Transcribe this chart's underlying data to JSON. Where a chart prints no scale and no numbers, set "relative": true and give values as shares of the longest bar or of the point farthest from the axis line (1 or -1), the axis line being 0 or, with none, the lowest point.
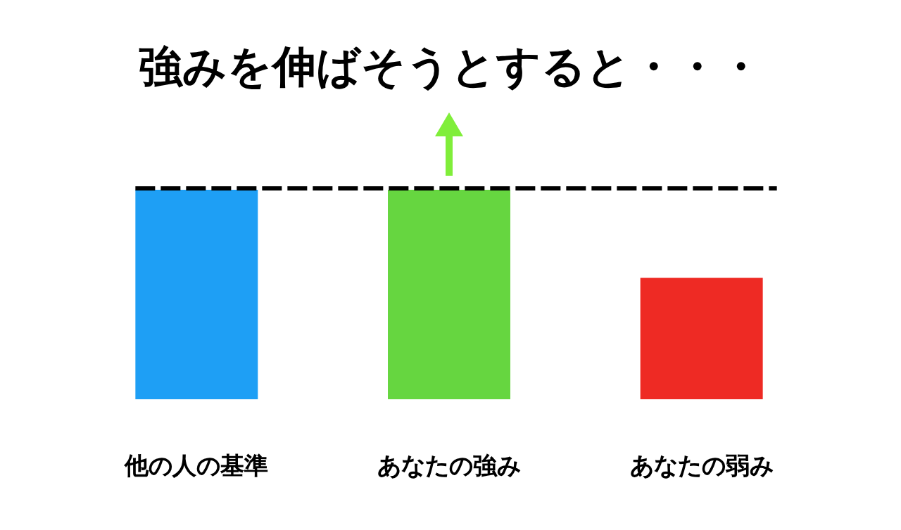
{
  "chart_data": {
    "type": "bar",
    "title": "強みを伸ばそうとすると・・・",
    "relative": true,
    "categories": [
      "他の人の基準",
      "あなたの強み",
      "あなたの弱み"
    ],
    "values": [
      1,
      1,
      0.58
    ],
    "colors": [
      "#1e9ff5",
      "#66d640",
      "#ee2a24"
    ],
    "ref_lines": [
      {
        "axis": "y",
        "value": 1,
        "color": "#000000",
        "line_style": "dashed"
      }
    ]
  }
}
